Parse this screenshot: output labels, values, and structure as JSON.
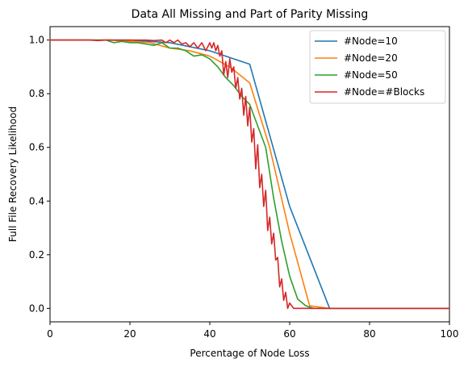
{
  "chart_data": {
    "type": "line",
    "title": "Data All Missing and Part of Parity Missing",
    "xlabel": "Percentage of Node Loss",
    "ylabel": "Full File Recovery Likelihood",
    "xlim": [
      0,
      100
    ],
    "ylim": [
      -0.05,
      1.05
    ],
    "xticks": [
      0,
      20,
      40,
      60,
      80,
      100
    ],
    "yticks": [
      0.0,
      0.2,
      0.4,
      0.6,
      0.8,
      1.0
    ],
    "x_tick_labels": [
      "0",
      "20",
      "40",
      "60",
      "80",
      "100"
    ],
    "y_tick_labels": [
      "0.0",
      "0.2",
      "0.4",
      "0.6",
      "0.8",
      "1.0"
    ],
    "grid": false,
    "legend": {
      "position": "top-right",
      "entries": [
        "#Node=10",
        "#Node=20",
        "#Node=50",
        "#Node=#Blocks"
      ]
    },
    "series": [
      {
        "name": "#Node=10",
        "color": "#1f77b4",
        "points": [
          [
            0,
            1.0
          ],
          [
            10,
            1.0
          ],
          [
            20,
            1.0
          ],
          [
            30,
            0.99
          ],
          [
            40,
            0.96
          ],
          [
            50,
            0.91
          ],
          [
            60,
            0.38
          ],
          [
            70,
            0.0
          ],
          [
            80,
            0.0
          ],
          [
            90,
            0.0
          ],
          [
            100,
            0.0
          ]
        ]
      },
      {
        "name": "#Node=20",
        "color": "#ff7f0e",
        "points": [
          [
            0,
            1.0
          ],
          [
            5,
            1.0
          ],
          [
            10,
            1.0
          ],
          [
            15,
            1.0
          ],
          [
            20,
            0.995
          ],
          [
            25,
            0.99
          ],
          [
            30,
            0.97
          ],
          [
            35,
            0.96
          ],
          [
            40,
            0.94
          ],
          [
            45,
            0.9
          ],
          [
            50,
            0.84
          ],
          [
            55,
            0.6
          ],
          [
            60,
            0.28
          ],
          [
            65,
            0.01
          ],
          [
            70,
            0.0
          ],
          [
            75,
            0.0
          ],
          [
            80,
            0.0
          ],
          [
            85,
            0.0
          ],
          [
            90,
            0.0
          ],
          [
            95,
            0.0
          ],
          [
            100,
            0.0
          ]
        ]
      },
      {
        "name": "#Node=50",
        "color": "#2ca02c",
        "points": [
          [
            0,
            1.0
          ],
          [
            10,
            1.0
          ],
          [
            12,
            1.0
          ],
          [
            14,
            1.0
          ],
          [
            16,
            0.99
          ],
          [
            18,
            0.995
          ],
          [
            20,
            0.99
          ],
          [
            22,
            0.99
          ],
          [
            24,
            0.985
          ],
          [
            26,
            0.98
          ],
          [
            28,
            0.99
          ],
          [
            30,
            0.97
          ],
          [
            32,
            0.97
          ],
          [
            34,
            0.96
          ],
          [
            36,
            0.94
          ],
          [
            38,
            0.945
          ],
          [
            40,
            0.93
          ],
          [
            42,
            0.9
          ],
          [
            44,
            0.86
          ],
          [
            46,
            0.83
          ],
          [
            48,
            0.79
          ],
          [
            50,
            0.76
          ],
          [
            52,
            0.68
          ],
          [
            54,
            0.6
          ],
          [
            56,
            0.41
          ],
          [
            58,
            0.25
          ],
          [
            60,
            0.12
          ],
          [
            62,
            0.035
          ],
          [
            64,
            0.01
          ],
          [
            66,
            0.0
          ],
          [
            68,
            0.0
          ],
          [
            70,
            0.0
          ],
          [
            80,
            0.0
          ],
          [
            90,
            0.0
          ],
          [
            100,
            0.0
          ]
        ]
      },
      {
        "name": "#Node=#Blocks",
        "color": "#d62728",
        "points": [
          [
            0,
            1.0
          ],
          [
            10,
            1.0
          ],
          [
            12,
            0.998
          ],
          [
            14,
            1.0
          ],
          [
            20,
            1.0
          ],
          [
            24,
            1.0
          ],
          [
            26,
            0.998
          ],
          [
            28,
            1.0
          ],
          [
            29,
            0.99
          ],
          [
            30,
            1.0
          ],
          [
            31,
            0.99
          ],
          [
            32,
            1.0
          ],
          [
            33,
            0.985
          ],
          [
            34,
            0.99
          ],
          [
            35,
            0.975
          ],
          [
            36,
            0.99
          ],
          [
            37,
            0.97
          ],
          [
            38,
            0.99
          ],
          [
            39,
            0.96
          ],
          [
            40,
            0.99
          ],
          [
            40.5,
            0.97
          ],
          [
            41,
            0.99
          ],
          [
            41.5,
            0.96
          ],
          [
            42,
            0.98
          ],
          [
            42.5,
            0.94
          ],
          [
            43,
            0.96
          ],
          [
            43.5,
            0.87
          ],
          [
            44,
            0.92
          ],
          [
            44.5,
            0.86
          ],
          [
            45,
            0.93
          ],
          [
            45.5,
            0.88
          ],
          [
            46,
            0.9
          ],
          [
            46.5,
            0.82
          ],
          [
            47,
            0.86
          ],
          [
            47.5,
            0.78
          ],
          [
            48,
            0.82
          ],
          [
            48.5,
            0.72
          ],
          [
            49,
            0.79
          ],
          [
            49.5,
            0.68
          ],
          [
            50,
            0.75
          ],
          [
            50.5,
            0.62
          ],
          [
            51,
            0.67
          ],
          [
            51.5,
            0.52
          ],
          [
            52,
            0.61
          ],
          [
            52.5,
            0.45
          ],
          [
            53,
            0.5
          ],
          [
            53.5,
            0.38
          ],
          [
            54,
            0.44
          ],
          [
            54.5,
            0.29
          ],
          [
            55,
            0.34
          ],
          [
            55.5,
            0.24
          ],
          [
            56,
            0.28
          ],
          [
            56.5,
            0.18
          ],
          [
            57,
            0.19
          ],
          [
            57.5,
            0.08
          ],
          [
            58,
            0.11
          ],
          [
            58.5,
            0.03
          ],
          [
            59,
            0.06
          ],
          [
            59.5,
            0.0
          ],
          [
            60,
            0.02
          ],
          [
            61,
            0.0
          ],
          [
            62,
            0.0
          ],
          [
            63,
            0.0
          ],
          [
            70,
            0.0
          ],
          [
            80,
            0.0
          ],
          [
            90,
            0.0
          ],
          [
            100,
            0.0
          ]
        ]
      }
    ]
  }
}
